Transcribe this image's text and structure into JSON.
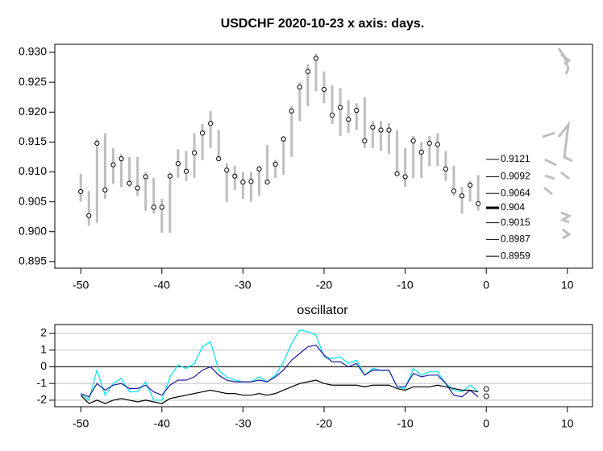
{
  "chart_data": [
    {
      "type": "range",
      "title": "USDCHF 2020-10-23 x axis: days.",
      "x": [
        -50,
        -49,
        -48,
        -47,
        -46,
        -45,
        -44,
        -43,
        -42,
        -41,
        -40,
        -39,
        -38,
        -37,
        -36,
        -35,
        -34,
        -33,
        -32,
        -31,
        -30,
        -29,
        -28,
        -27,
        -26,
        -25,
        -24,
        -23,
        -22,
        -21,
        -20,
        -19,
        -18,
        -17,
        -16,
        -15,
        -14,
        -13,
        -12,
        -11,
        -10,
        -9,
        -8,
        -7,
        -6,
        -5,
        -4,
        -3,
        -2,
        -1
      ],
      "low": [
        0.905,
        0.901,
        0.9015,
        0.9055,
        0.908,
        0.9075,
        0.9075,
        0.906,
        0.9035,
        0.903,
        0.8998,
        0.8998,
        0.909,
        0.9085,
        0.909,
        0.912,
        0.914,
        0.912,
        0.905,
        0.907,
        0.9055,
        0.905,
        0.906,
        0.908,
        0.909,
        0.9095,
        0.9125,
        0.9185,
        0.921,
        0.9235,
        0.9215,
        0.918,
        0.916,
        0.9165,
        0.917,
        0.914,
        0.914,
        0.9135,
        0.913,
        0.9095,
        0.9075,
        0.909,
        0.909,
        0.911,
        0.911,
        0.9085,
        0.906,
        0.903,
        0.905,
        0.9035
      ],
      "high": [
        0.9097,
        0.9068,
        0.9155,
        0.9165,
        0.914,
        0.913,
        0.9125,
        0.9125,
        0.91,
        0.909,
        0.9055,
        0.91,
        0.9138,
        0.9135,
        0.9165,
        0.918,
        0.9202,
        0.917,
        0.9115,
        0.911,
        0.91,
        0.91,
        0.911,
        0.9145,
        0.912,
        0.916,
        0.921,
        0.925,
        0.928,
        0.9298,
        0.9268,
        0.9245,
        0.924,
        0.922,
        0.9215,
        0.9225,
        0.9185,
        0.9185,
        0.9182,
        0.917,
        0.914,
        0.916,
        0.915,
        0.916,
        0.9165,
        0.9135,
        0.911,
        0.9075,
        0.9085,
        0.9095
      ],
      "close": [
        0.9067,
        0.9027,
        0.9148,
        0.907,
        0.9112,
        0.9122,
        0.9081,
        0.9073,
        0.9092,
        0.9041,
        0.9041,
        0.9093,
        0.9114,
        0.9101,
        0.9132,
        0.9165,
        0.9181,
        0.9122,
        0.9103,
        0.9093,
        0.9083,
        0.9084,
        0.9105,
        0.9083,
        0.9113,
        0.9155,
        0.9202,
        0.9242,
        0.9268,
        0.929,
        0.9238,
        0.9195,
        0.9208,
        0.9188,
        0.9203,
        0.9152,
        0.9175,
        0.917,
        0.917,
        0.9097,
        0.9092,
        0.9152,
        0.9133,
        0.9148,
        0.9146,
        0.9105,
        0.9068,
        0.906,
        0.9078,
        0.9047
      ],
      "color": "#bebebe",
      "levels": [
        0.9121,
        0.9092,
        0.9064,
        0.904,
        0.9015,
        0.8987,
        0.8959
      ],
      "highlight_level": 3,
      "xlim": [
        -53.2,
        13.1
      ],
      "xticks": [
        -50,
        -40,
        -30,
        -20,
        -10,
        0,
        10
      ],
      "ylim": [
        0.8939,
        0.93135
      ],
      "yticks": [
        0.895,
        {
          "value": 0.9,
          "label": "0.900"
        },
        0.905,
        {
          "value": 0.91,
          "label": "0.910"
        },
        0.915,
        {
          "value": 0.92,
          "label": "0.920"
        },
        0.925,
        {
          "value": 0.93,
          "label": "0.930"
        }
      ]
    },
    {
      "type": "line",
      "title": "oscillator",
      "x": [
        -50,
        -49,
        -48,
        -47,
        -46,
        -45,
        -44,
        -43,
        -42,
        -41,
        -40,
        -39,
        -38,
        -37,
        -36,
        -35,
        -34,
        -33,
        -32,
        -31,
        -30,
        -29,
        -28,
        -27,
        -26,
        -25,
        -24,
        -23,
        -22,
        -21,
        -20,
        -19,
        -18,
        -17,
        -16,
        -15,
        -14,
        -13,
        -12,
        -11,
        -10,
        -9,
        -8,
        -7,
        -6,
        -5,
        -4,
        -3,
        -2,
        -1
      ],
      "series": [
        {
          "color": "#00e5ee",
          "values": [
            -1.6,
            -2.0,
            -0.2,
            -1.7,
            -1.0,
            -0.7,
            -1.5,
            -1.5,
            -0.9,
            -2.0,
            -2.0,
            -0.6,
            0.1,
            -0.1,
            0.2,
            1.2,
            1.5,
            -0.2,
            -0.6,
            -0.8,
            -0.9,
            -0.9,
            -0.6,
            -0.9,
            -0.5,
            0.3,
            1.4,
            2.2,
            2.1,
            1.9,
            0.6,
            0.5,
            0.6,
            0.2,
            0.4,
            -0.5,
            -0.1,
            -0.2,
            -0.2,
            -1.2,
            -1.3,
            -0.1,
            -0.5,
            -0.3,
            -0.3,
            -1.0,
            -1.4,
            -1.5,
            -1.1,
            -1.5
          ]
        },
        {
          "color": "#1a1aa0",
          "values": [
            -1.6,
            -1.8,
            -1.0,
            -1.4,
            -1.1,
            -1.0,
            -1.3,
            -1.3,
            -1.1,
            -1.5,
            -1.7,
            -1.1,
            -0.8,
            -0.8,
            -0.6,
            -0.2,
            0.0,
            -0.5,
            -0.8,
            -0.9,
            -0.9,
            -0.9,
            -0.8,
            -0.9,
            -0.6,
            -0.2,
            0.4,
            0.8,
            1.2,
            1.3,
            0.7,
            0.3,
            0.3,
            0.0,
            0.2,
            -0.5,
            -0.2,
            -0.2,
            -0.2,
            -1.2,
            -1.2,
            -0.4,
            -0.6,
            -0.5,
            -0.5,
            -1.0,
            -1.7,
            -1.8,
            -1.4,
            -1.8
          ]
        },
        {
          "color": "#000000",
          "values": [
            -1.7,
            -2.2,
            -2.0,
            -2.2,
            -2.0,
            -1.9,
            -2.0,
            -2.1,
            -2.0,
            -2.1,
            -2.2,
            -1.9,
            -1.8,
            -1.7,
            -1.6,
            -1.5,
            -1.4,
            -1.5,
            -1.6,
            -1.6,
            -1.7,
            -1.7,
            -1.6,
            -1.7,
            -1.6,
            -1.4,
            -1.2,
            -1.0,
            -0.9,
            -0.8,
            -1.0,
            -1.1,
            -1.1,
            -1.1,
            -1.1,
            -1.2,
            -1.1,
            -1.1,
            -1.1,
            -1.3,
            -1.4,
            -1.2,
            -1.2,
            -1.2,
            -1.1,
            -1.2,
            -1.3,
            -1.4,
            -1.4,
            -1.5
          ]
        }
      ],
      "markers": {
        "x": 0,
        "values": [
          -1.33,
          -1.76
        ]
      },
      "xlim": [
        -53.2,
        13.1
      ],
      "xticks": [
        -50,
        -40,
        -30,
        -20,
        -10,
        0,
        10
      ],
      "ylim": [
        -2.39,
        2.53
      ],
      "yticks": [
        -2,
        -1,
        0,
        1,
        2
      ],
      "grid": true
    }
  ]
}
